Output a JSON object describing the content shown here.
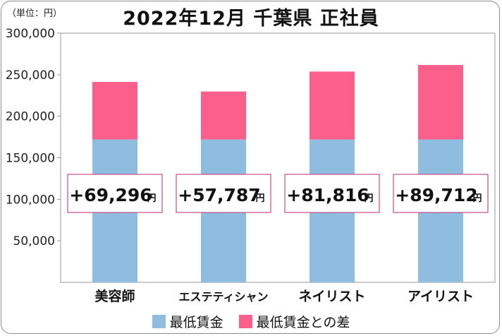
{
  "chart_data": {
    "type": "bar",
    "stacked": true,
    "title": "2022年12月 千葉県 正社員",
    "unit_label": "（単位：円）",
    "categories": [
      "美容師",
      "エステティシャン",
      "ネイリスト",
      "アイリスト"
    ],
    "series": [
      {
        "name": "最低賃金",
        "values": [
          172000,
          172000,
          172000,
          172000
        ],
        "color": "#8ebde0"
      },
      {
        "name": "最低賃金との差",
        "values": [
          69296,
          57787,
          81816,
          89712
        ],
        "color": "#fd5f8d"
      }
    ],
    "annotations": [
      "+69,296",
      "+57,787",
      "+81,816",
      "+89,712"
    ],
    "annotation_suffix": "円",
    "ylim": [
      0,
      300000
    ],
    "yticks": [
      "50,000",
      "100,000",
      "150,000",
      "200,000",
      "250,000",
      "300,000"
    ],
    "grid": false,
    "legend_position": "bottom"
  },
  "colors": {
    "base": "#8ebde0",
    "diff": "#fd5f8d",
    "annotation_border": "#c64d86"
  }
}
